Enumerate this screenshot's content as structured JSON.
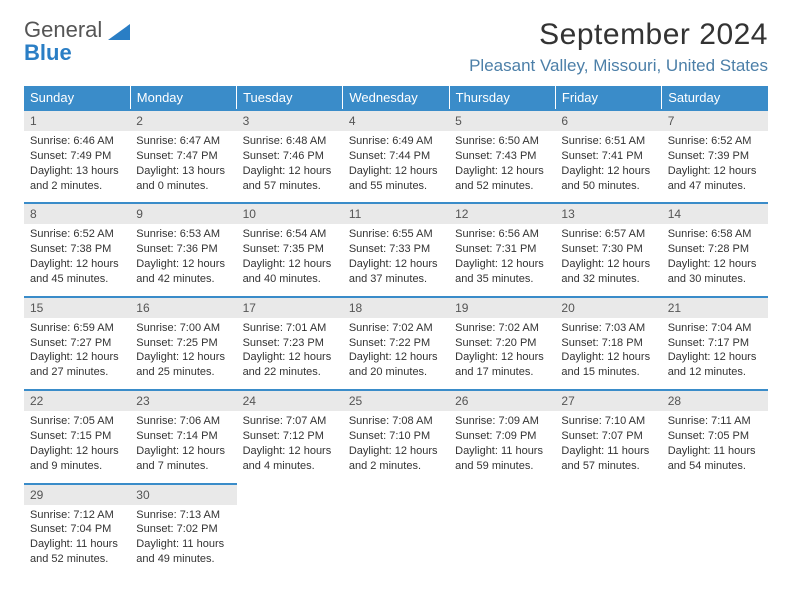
{
  "logo": {
    "line1": "General",
    "line2": "Blue"
  },
  "title": "September 2024",
  "location": "Pleasant Valley, Missouri, United States",
  "colors": {
    "header_bg": "#3a8cc9",
    "header_text": "#ffffff",
    "daynum_bg": "#e9e9e9",
    "daynum_border": "#3a8cc9",
    "location_text": "#4c7fa8",
    "logo_blue": "#2a7ec5"
  },
  "dow": [
    "Sunday",
    "Monday",
    "Tuesday",
    "Wednesday",
    "Thursday",
    "Friday",
    "Saturday"
  ],
  "weeks": [
    [
      {
        "n": "1",
        "sr": "Sunrise: 6:46 AM",
        "ss": "Sunset: 7:49 PM",
        "dl1": "Daylight: 13 hours",
        "dl2": "and 2 minutes."
      },
      {
        "n": "2",
        "sr": "Sunrise: 6:47 AM",
        "ss": "Sunset: 7:47 PM",
        "dl1": "Daylight: 13 hours",
        "dl2": "and 0 minutes."
      },
      {
        "n": "3",
        "sr": "Sunrise: 6:48 AM",
        "ss": "Sunset: 7:46 PM",
        "dl1": "Daylight: 12 hours",
        "dl2": "and 57 minutes."
      },
      {
        "n": "4",
        "sr": "Sunrise: 6:49 AM",
        "ss": "Sunset: 7:44 PM",
        "dl1": "Daylight: 12 hours",
        "dl2": "and 55 minutes."
      },
      {
        "n": "5",
        "sr": "Sunrise: 6:50 AM",
        "ss": "Sunset: 7:43 PM",
        "dl1": "Daylight: 12 hours",
        "dl2": "and 52 minutes."
      },
      {
        "n": "6",
        "sr": "Sunrise: 6:51 AM",
        "ss": "Sunset: 7:41 PM",
        "dl1": "Daylight: 12 hours",
        "dl2": "and 50 minutes."
      },
      {
        "n": "7",
        "sr": "Sunrise: 6:52 AM",
        "ss": "Sunset: 7:39 PM",
        "dl1": "Daylight: 12 hours",
        "dl2": "and 47 minutes."
      }
    ],
    [
      {
        "n": "8",
        "sr": "Sunrise: 6:52 AM",
        "ss": "Sunset: 7:38 PM",
        "dl1": "Daylight: 12 hours",
        "dl2": "and 45 minutes."
      },
      {
        "n": "9",
        "sr": "Sunrise: 6:53 AM",
        "ss": "Sunset: 7:36 PM",
        "dl1": "Daylight: 12 hours",
        "dl2": "and 42 minutes."
      },
      {
        "n": "10",
        "sr": "Sunrise: 6:54 AM",
        "ss": "Sunset: 7:35 PM",
        "dl1": "Daylight: 12 hours",
        "dl2": "and 40 minutes."
      },
      {
        "n": "11",
        "sr": "Sunrise: 6:55 AM",
        "ss": "Sunset: 7:33 PM",
        "dl1": "Daylight: 12 hours",
        "dl2": "and 37 minutes."
      },
      {
        "n": "12",
        "sr": "Sunrise: 6:56 AM",
        "ss": "Sunset: 7:31 PM",
        "dl1": "Daylight: 12 hours",
        "dl2": "and 35 minutes."
      },
      {
        "n": "13",
        "sr": "Sunrise: 6:57 AM",
        "ss": "Sunset: 7:30 PM",
        "dl1": "Daylight: 12 hours",
        "dl2": "and 32 minutes."
      },
      {
        "n": "14",
        "sr": "Sunrise: 6:58 AM",
        "ss": "Sunset: 7:28 PM",
        "dl1": "Daylight: 12 hours",
        "dl2": "and 30 minutes."
      }
    ],
    [
      {
        "n": "15",
        "sr": "Sunrise: 6:59 AM",
        "ss": "Sunset: 7:27 PM",
        "dl1": "Daylight: 12 hours",
        "dl2": "and 27 minutes."
      },
      {
        "n": "16",
        "sr": "Sunrise: 7:00 AM",
        "ss": "Sunset: 7:25 PM",
        "dl1": "Daylight: 12 hours",
        "dl2": "and 25 minutes."
      },
      {
        "n": "17",
        "sr": "Sunrise: 7:01 AM",
        "ss": "Sunset: 7:23 PM",
        "dl1": "Daylight: 12 hours",
        "dl2": "and 22 minutes."
      },
      {
        "n": "18",
        "sr": "Sunrise: 7:02 AM",
        "ss": "Sunset: 7:22 PM",
        "dl1": "Daylight: 12 hours",
        "dl2": "and 20 minutes."
      },
      {
        "n": "19",
        "sr": "Sunrise: 7:02 AM",
        "ss": "Sunset: 7:20 PM",
        "dl1": "Daylight: 12 hours",
        "dl2": "and 17 minutes."
      },
      {
        "n": "20",
        "sr": "Sunrise: 7:03 AM",
        "ss": "Sunset: 7:18 PM",
        "dl1": "Daylight: 12 hours",
        "dl2": "and 15 minutes."
      },
      {
        "n": "21",
        "sr": "Sunrise: 7:04 AM",
        "ss": "Sunset: 7:17 PM",
        "dl1": "Daylight: 12 hours",
        "dl2": "and 12 minutes."
      }
    ],
    [
      {
        "n": "22",
        "sr": "Sunrise: 7:05 AM",
        "ss": "Sunset: 7:15 PM",
        "dl1": "Daylight: 12 hours",
        "dl2": "and 9 minutes."
      },
      {
        "n": "23",
        "sr": "Sunrise: 7:06 AM",
        "ss": "Sunset: 7:14 PM",
        "dl1": "Daylight: 12 hours",
        "dl2": "and 7 minutes."
      },
      {
        "n": "24",
        "sr": "Sunrise: 7:07 AM",
        "ss": "Sunset: 7:12 PM",
        "dl1": "Daylight: 12 hours",
        "dl2": "and 4 minutes."
      },
      {
        "n": "25",
        "sr": "Sunrise: 7:08 AM",
        "ss": "Sunset: 7:10 PM",
        "dl1": "Daylight: 12 hours",
        "dl2": "and 2 minutes."
      },
      {
        "n": "26",
        "sr": "Sunrise: 7:09 AM",
        "ss": "Sunset: 7:09 PM",
        "dl1": "Daylight: 11 hours",
        "dl2": "and 59 minutes."
      },
      {
        "n": "27",
        "sr": "Sunrise: 7:10 AM",
        "ss": "Sunset: 7:07 PM",
        "dl1": "Daylight: 11 hours",
        "dl2": "and 57 minutes."
      },
      {
        "n": "28",
        "sr": "Sunrise: 7:11 AM",
        "ss": "Sunset: 7:05 PM",
        "dl1": "Daylight: 11 hours",
        "dl2": "and 54 minutes."
      }
    ],
    [
      {
        "n": "29",
        "sr": "Sunrise: 7:12 AM",
        "ss": "Sunset: 7:04 PM",
        "dl1": "Daylight: 11 hours",
        "dl2": "and 52 minutes."
      },
      {
        "n": "30",
        "sr": "Sunrise: 7:13 AM",
        "ss": "Sunset: 7:02 PM",
        "dl1": "Daylight: 11 hours",
        "dl2": "and 49 minutes."
      },
      null,
      null,
      null,
      null,
      null
    ]
  ]
}
